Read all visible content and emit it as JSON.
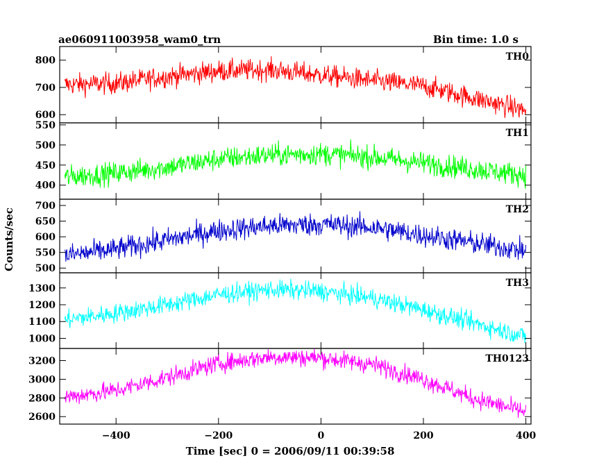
{
  "chart_data": {
    "type": "line",
    "title": "ae060911003958_wam0_trn",
    "subtitle": "Bin time: 1.0 s",
    "xlabel": "Time [sec] 0 = 2006/09/11 00:39:58",
    "ylabel": "Counts/sec",
    "xlim": [
      -510,
      410
    ],
    "xticks": [
      -400,
      -200,
      0,
      200,
      400
    ],
    "x_start": -500,
    "x_end": 400,
    "bin_time": 1.0,
    "grid": false,
    "legend": "none",
    "panels": [
      {
        "name": "TH0",
        "color": "#ff0000",
        "ylim": [
          570,
          850
        ],
        "yticks": [
          600,
          700,
          800
        ],
        "trend": [
          [
            -500,
            710
          ],
          [
            -400,
            715
          ],
          [
            -300,
            740
          ],
          [
            -200,
            760
          ],
          [
            -100,
            765
          ],
          [
            0,
            745
          ],
          [
            100,
            725
          ],
          [
            200,
            705
          ],
          [
            300,
            660
          ],
          [
            400,
            615
          ]
        ],
        "noise": 28
      },
      {
        "name": "TH1",
        "color": "#00ff00",
        "ylim": [
          365,
          555
        ],
        "yticks": [
          400,
          450,
          500,
          550
        ],
        "trend": [
          [
            -500,
            420
          ],
          [
            -400,
            430
          ],
          [
            -300,
            445
          ],
          [
            -200,
            465
          ],
          [
            -100,
            475
          ],
          [
            0,
            478
          ],
          [
            100,
            470
          ],
          [
            200,
            455
          ],
          [
            300,
            440
          ],
          [
            400,
            425
          ]
        ],
        "noise": 20
      },
      {
        "name": "TH2",
        "color": "#0000cc",
        "ylim": [
          485,
          720
        ],
        "yticks": [
          500,
          550,
          600,
          650,
          700
        ],
        "trend": [
          [
            -500,
            540
          ],
          [
            -400,
            560
          ],
          [
            -300,
            590
          ],
          [
            -200,
            620
          ],
          [
            -100,
            635
          ],
          [
            0,
            640
          ],
          [
            100,
            630
          ],
          [
            200,
            605
          ],
          [
            300,
            580
          ],
          [
            400,
            555
          ]
        ],
        "noise": 26
      },
      {
        "name": "TH3",
        "color": "#00ffff",
        "ylim": [
          940,
          1390
        ],
        "yticks": [
          1000,
          1100,
          1200,
          1300
        ],
        "trend": [
          [
            -500,
            1110
          ],
          [
            -400,
            1150
          ],
          [
            -300,
            1200
          ],
          [
            -200,
            1260
          ],
          [
            -100,
            1290
          ],
          [
            0,
            1280
          ],
          [
            100,
            1240
          ],
          [
            200,
            1170
          ],
          [
            300,
            1090
          ],
          [
            400,
            1010
          ]
        ],
        "noise": 40
      },
      {
        "name": "TH0123",
        "color": "#ff00ff",
        "ylim": [
          2520,
          3330
        ],
        "yticks": [
          2600,
          2800,
          3000,
          3200
        ],
        "trend": [
          [
            -500,
            2810
          ],
          [
            -400,
            2880
          ],
          [
            -300,
            3020
          ],
          [
            -200,
            3170
          ],
          [
            -100,
            3240
          ],
          [
            0,
            3230
          ],
          [
            100,
            3160
          ],
          [
            200,
            3000
          ],
          [
            300,
            2790
          ],
          [
            400,
            2650
          ]
        ],
        "noise": 70
      }
    ]
  }
}
